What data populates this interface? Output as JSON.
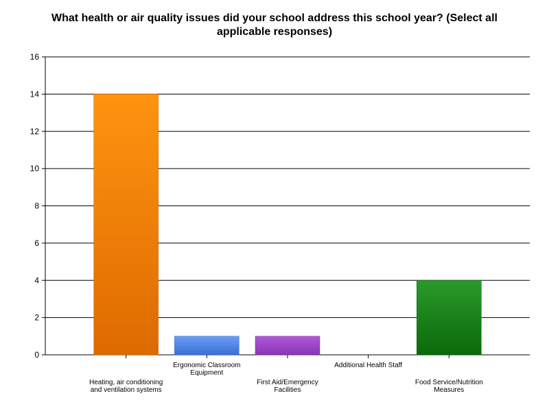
{
  "chart_data": {
    "type": "bar",
    "title": "What health or air quality issues did your school address this school year? (Select all applicable responses)",
    "xlabel": "",
    "ylabel": "",
    "ylim": [
      0,
      16
    ],
    "yticks": [
      0,
      2,
      4,
      6,
      8,
      10,
      12,
      14,
      16
    ],
    "grid": true,
    "legend": "none",
    "categories": [
      [
        "Heating, air conditioning",
        "and ventilation systems"
      ],
      [
        "Ergonomic Classroom",
        "Equipment"
      ],
      [
        "First Aid/Emergency",
        "Facilities"
      ],
      [
        "Additional Health Staff"
      ],
      [
        "Food Service/Nutrition",
        "Measures"
      ]
    ],
    "values": [
      14,
      1,
      1,
      0,
      4
    ],
    "label_rows": [
      "lower",
      "upper",
      "lower",
      "upper",
      "lower"
    ],
    "colors": [
      [
        "#ff9410",
        "#de6a00"
      ],
      [
        "#6c9ef5",
        "#3a6fd8"
      ],
      [
        "#b05ad8",
        "#8a34b8"
      ],
      [
        "#bdbdbd",
        "#9e9e9e"
      ],
      [
        "#2a9a2a",
        "#0a6a0a"
      ]
    ],
    "edge_colors": [
      "#c86400",
      "#3a64c0",
      "#7a2aa0",
      "#888888",
      "#0a5a0a"
    ]
  }
}
